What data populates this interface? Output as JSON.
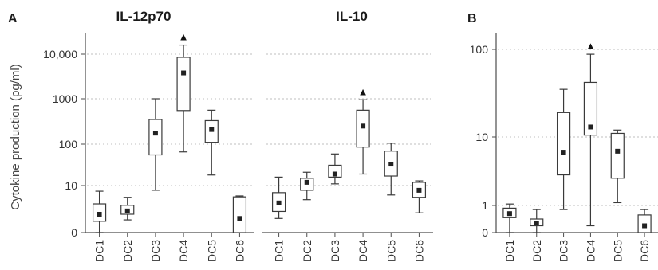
{
  "panel_labels": {
    "a": "A",
    "b": "B"
  },
  "ylabel": "Cytokine production (pg/ml)",
  "chart_data": [
    {
      "type": "box",
      "panel": "A",
      "title": "IL-12p70",
      "ylabel": "Cytokine production (pg/ml)",
      "yscale": "log-with-zero",
      "yticks": [
        "0",
        "10",
        "100",
        "1000",
        "10,000"
      ],
      "grid": true,
      "categories": [
        "DC1",
        "DC2",
        "DC3",
        "DC4",
        "DC5",
        "DC6"
      ],
      "boxes": [
        {
          "min": 0,
          "q1": 2.4,
          "median": 3.9,
          "q3": 6.1,
          "max": 8.8
        },
        {
          "min": 2.7,
          "q1": 3.9,
          "median": 4.6,
          "q3": 5.8,
          "max": 7.5
        },
        {
          "min": 9,
          "q1": 55,
          "median": 175,
          "q3": 350,
          "max": 1000
        },
        {
          "min": 65,
          "q1": 550,
          "median": 3800,
          "q3": 8500,
          "max": 16000,
          "outlier_marker": "▲"
        },
        {
          "min": 18,
          "q1": 110,
          "median": 210,
          "q3": 330,
          "max": 560
        },
        {
          "min": 0,
          "q1": 0,
          "median": 3,
          "q3": 7.6,
          "max": 7.8
        }
      ]
    },
    {
      "type": "box",
      "panel": "A",
      "title": "IL-10",
      "yscale": "log-with-zero",
      "grid": true,
      "categories": [
        "DC1",
        "DC2",
        "DC3",
        "DC4",
        "DC5",
        "DC6"
      ],
      "boxes": [
        {
          "min": 3,
          "q1": 4.5,
          "median": 6.3,
          "q3": 8.5,
          "max": 16
        },
        {
          "min": 7,
          "q1": 9,
          "median": 12,
          "q3": 15,
          "max": 21
        },
        {
          "min": 11,
          "q1": 16,
          "median": 19,
          "q3": 31,
          "max": 58
        },
        {
          "min": 19,
          "q1": 85,
          "median": 250,
          "q3": 560,
          "max": 950,
          "outlier_marker": "▲"
        },
        {
          "min": 8,
          "q1": 17,
          "median": 33,
          "q3": 68,
          "max": 105
        },
        {
          "min": 4.2,
          "q1": 7.5,
          "median": 9,
          "q3": 12,
          "max": 13
        }
      ]
    },
    {
      "type": "box",
      "panel": "B",
      "title": "",
      "yscale": "log-with-zero",
      "yticks": [
        "0",
        "1",
        "10",
        "100"
      ],
      "grid": true,
      "categories": [
        "DC1",
        "DC2",
        "DC3",
        "DC4",
        "DC5",
        "DC6"
      ],
      "boxes": [
        {
          "min": 0,
          "q1": 0.55,
          "median": 0.7,
          "q3": 0.9,
          "max": 1.05
        },
        {
          "min": 0,
          "q1": 0.25,
          "median": 0.35,
          "q3": 0.5,
          "max": 0.85
        },
        {
          "min": 0.85,
          "q1": 2.8,
          "median": 6,
          "q3": 19,
          "max": 35
        },
        {
          "min": 0.25,
          "q1": 10.5,
          "median": 13,
          "q3": 42,
          "max": 88,
          "outlier_marker": "▲"
        },
        {
          "min": 1.1,
          "q1": 2.5,
          "median": 6.2,
          "q3": 11,
          "max": 12
        },
        {
          "min": 0,
          "q1": 0,
          "median": 0.25,
          "q3": 0.65,
          "max": 0.85
        }
      ]
    }
  ]
}
